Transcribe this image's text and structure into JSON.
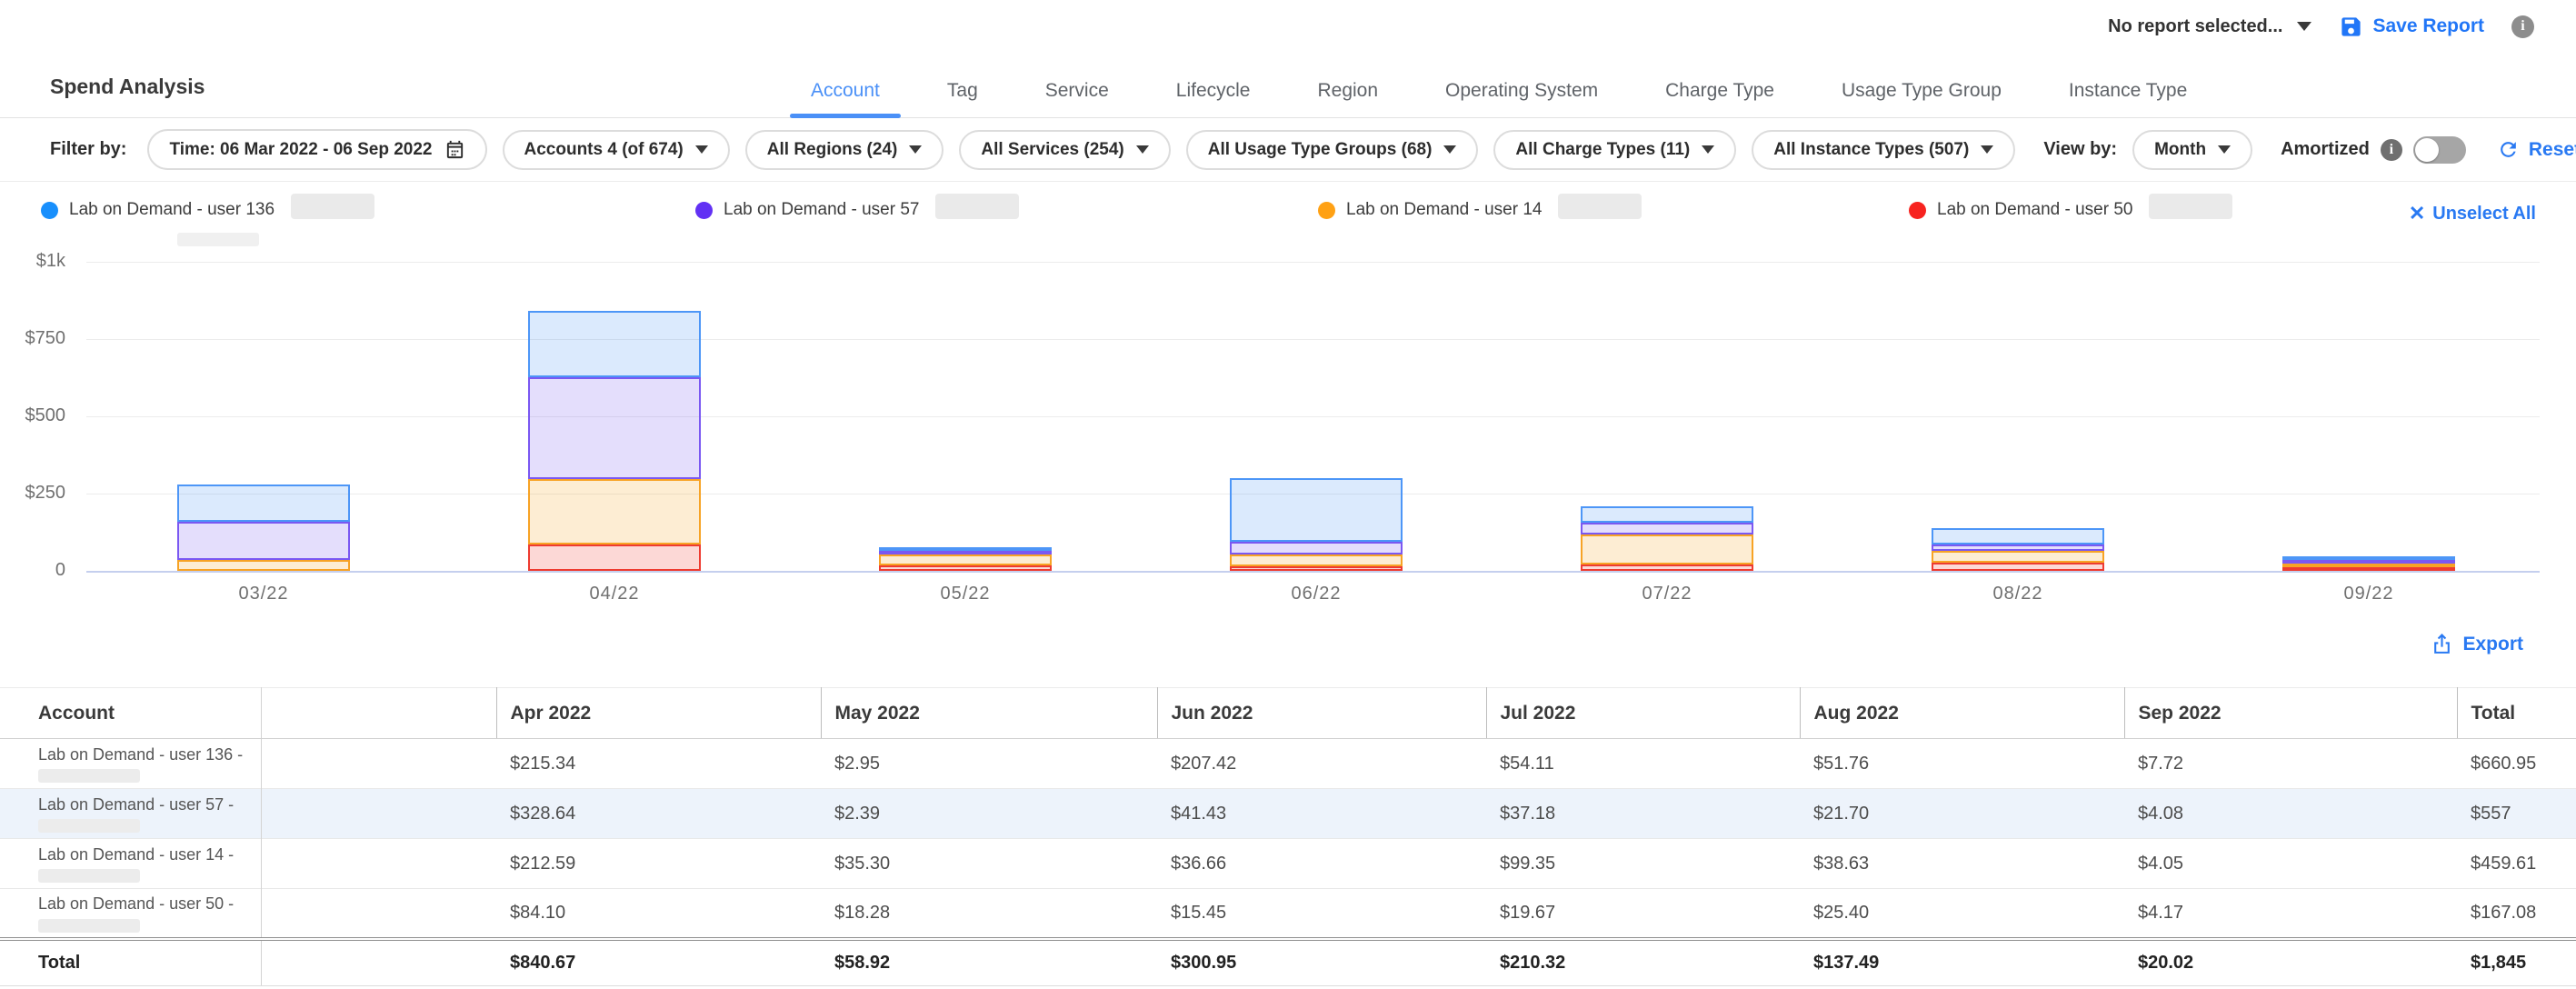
{
  "topbar": {
    "report_selector": "No report selected...",
    "save_report": "Save Report"
  },
  "page": {
    "title": "Spend Analysis"
  },
  "tabs": [
    {
      "label": "Account",
      "active": true
    },
    {
      "label": "Tag",
      "active": false
    },
    {
      "label": "Service",
      "active": false
    },
    {
      "label": "Lifecycle",
      "active": false
    },
    {
      "label": "Region",
      "active": false
    },
    {
      "label": "Operating System",
      "active": false
    },
    {
      "label": "Charge Type",
      "active": false
    },
    {
      "label": "Usage Type Group",
      "active": false
    },
    {
      "label": "Instance Type",
      "active": false
    }
  ],
  "filters": {
    "label": "Filter by:",
    "time": "Time: 06 Mar 2022 - 06 Sep 2022",
    "dropdowns": [
      "Accounts 4 (of 674)",
      "All Regions (24)",
      "All Services (254)",
      "All Usage Type Groups (68)",
      "All Charge Types (11)",
      "All Instance Types (507)"
    ],
    "view_by_label": "View by:",
    "view_by_value": "Month",
    "amortized_label": "Amortized",
    "amortized_on": false,
    "reset": "Reset Filters"
  },
  "legend": {
    "items": [
      {
        "label": "Lab on Demand - user 136",
        "color": "#188ffc",
        "redacted_id": true
      },
      {
        "label": "Lab on Demand - user 57",
        "color": "#6231f4",
        "redacted_id": true
      },
      {
        "label": "Lab on Demand - user 14",
        "color": "#ffa114",
        "redacted_id": true
      },
      {
        "label": "Lab on Demand - user 50",
        "color": "#f7231f",
        "redacted_id": true
      }
    ],
    "unselect_all": "Unselect All"
  },
  "chart_data": {
    "type": "bar",
    "stacked": true,
    "categories": [
      "03/22",
      "04/22",
      "05/22",
      "06/22",
      "07/22",
      "08/22",
      "09/22"
    ],
    "series": [
      {
        "name": "Lab on Demand - user 50",
        "color": "#ee3b30",
        "values": [
          0,
          84.1,
          18.28,
          15.45,
          19.67,
          25.4,
          4.17
        ]
      },
      {
        "name": "Lab on Demand - user 14",
        "color": "#f7a325",
        "values": [
          35,
          212.59,
          35.3,
          36.66,
          99.35,
          38.63,
          4.05
        ]
      },
      {
        "name": "Lab on Demand - user 57",
        "color": "#7a58f2",
        "values": [
          125,
          328.64,
          2.39,
          41.43,
          37.18,
          21.7,
          4.08
        ]
      },
      {
        "name": "Lab on Demand - user 136",
        "color": "#4d96f7",
        "values": [
          120,
          215.34,
          2.95,
          207.42,
          54.11,
          51.76,
          7.72
        ]
      }
    ],
    "ytick_labels": [
      "$1k",
      "$750",
      "$500",
      "$250",
      "0"
    ],
    "ylim": [
      0,
      1000
    ],
    "grid": true,
    "legend_position": "top"
  },
  "table_section": {
    "export_label": "Export"
  },
  "table": {
    "columns": [
      "Account",
      "",
      "Apr 2022",
      "May 2022",
      "Jun 2022",
      "Jul 2022",
      "Aug 2022",
      "Sep 2022",
      "Total"
    ],
    "rows": [
      {
        "account": "Lab on Demand - user 136 -",
        "redacted_id": true,
        "highlight": false,
        "values": [
          "$215.34",
          "$2.95",
          "$207.42",
          "$54.11",
          "$51.76",
          "$7.72",
          "$660.95"
        ]
      },
      {
        "account": "Lab on Demand - user 57 -",
        "redacted_id": true,
        "highlight": true,
        "values": [
          "$328.64",
          "$2.39",
          "$41.43",
          "$37.18",
          "$21.70",
          "$4.08",
          "$557"
        ]
      },
      {
        "account": "Lab on Demand - user 14 -",
        "redacted_id": true,
        "highlight": false,
        "values": [
          "$212.59",
          "$35.30",
          "$36.66",
          "$99.35",
          "$38.63",
          "$4.05",
          "$459.61"
        ]
      },
      {
        "account": "Lab on Demand - user 50 -",
        "redacted_id": true,
        "highlight": false,
        "values": [
          "$84.10",
          "$18.28",
          "$15.45",
          "$19.67",
          "$25.40",
          "$4.17",
          "$167.08"
        ]
      }
    ],
    "total_row": {
      "label": "Total",
      "values": [
        "$840.67",
        "$58.92",
        "$300.95",
        "$210.32",
        "$137.49",
        "$20.02",
        "$1,845"
      ]
    }
  }
}
